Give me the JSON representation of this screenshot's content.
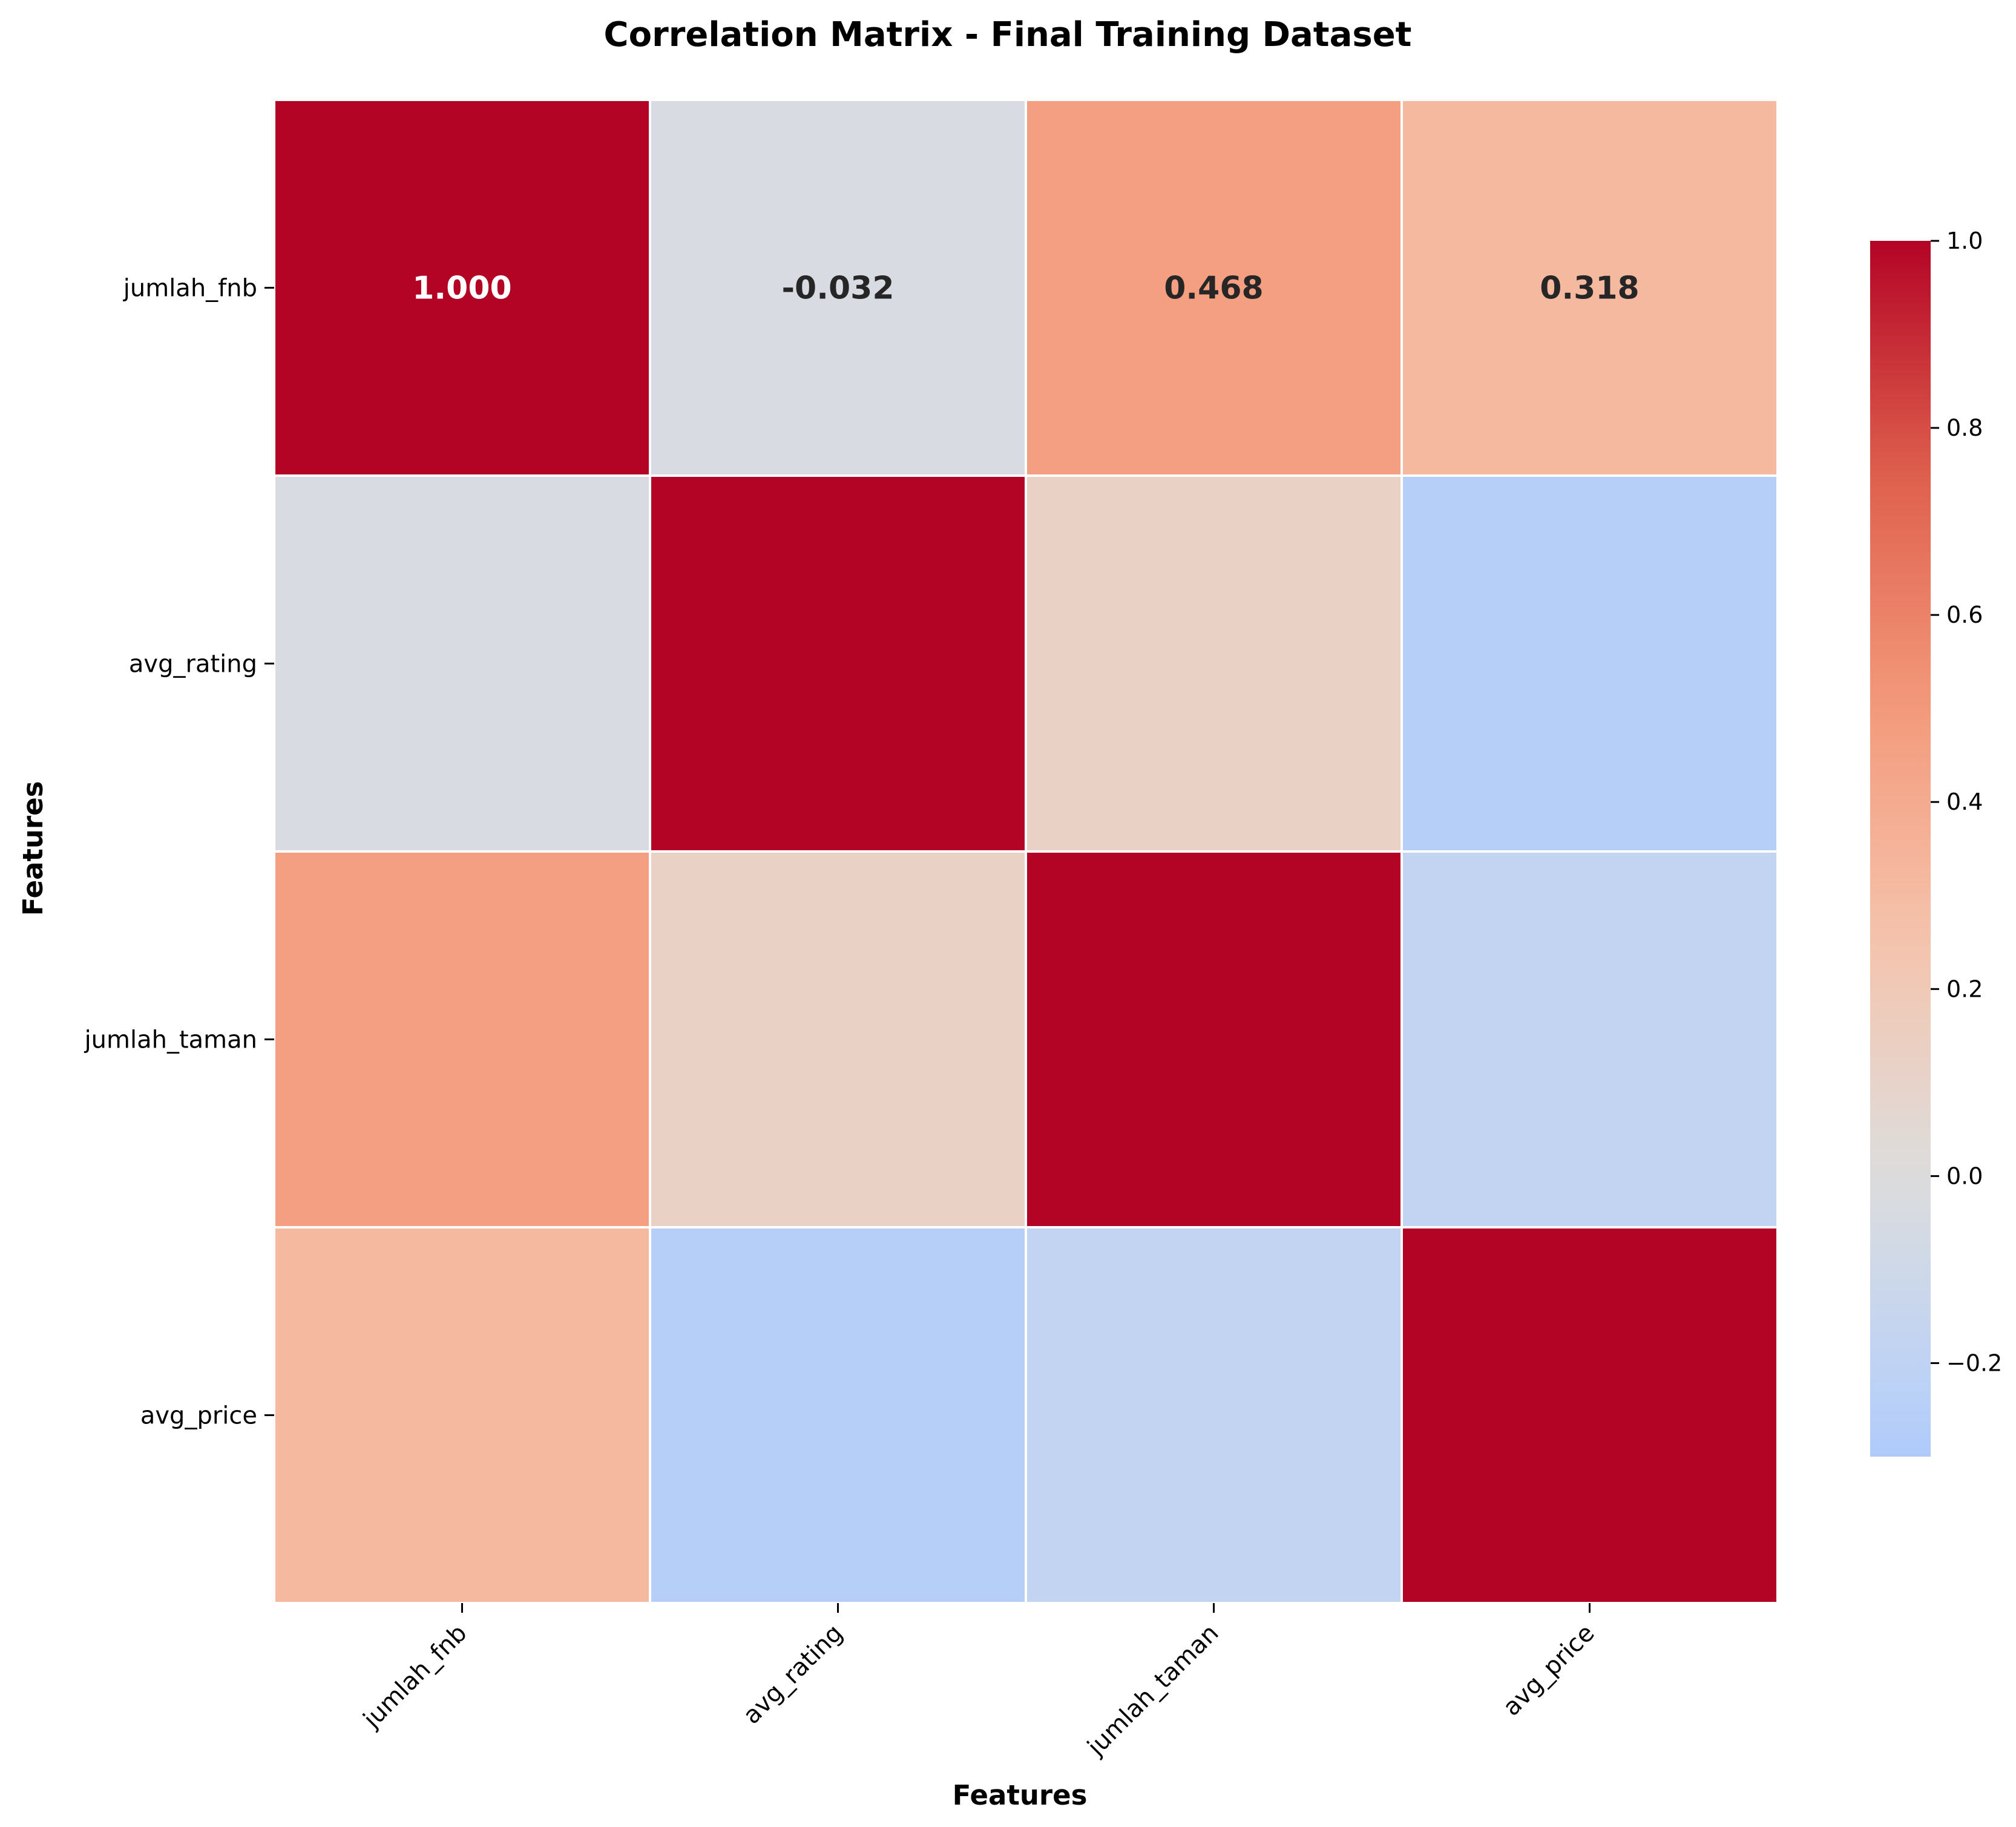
{
  "chart_data": {
    "type": "heatmap",
    "title": "Correlation Matrix - Final Training Dataset",
    "xlabel": "Features",
    "ylabel": "Features",
    "features": [
      "jumlah_fnb",
      "avg_rating",
      "jumlah_taman",
      "avg_price"
    ],
    "matrix": [
      [
        1.0,
        -0.032,
        0.468,
        0.318
      ],
      [
        -0.032,
        1.0,
        0.12,
        -0.26
      ],
      [
        0.468,
        0.12,
        1.0,
        -0.18
      ],
      [
        0.318,
        -0.26,
        -0.18,
        1.0
      ]
    ],
    "annotations": [
      {
        "row": 0,
        "col": 0,
        "text": "1.000",
        "color": "#ffffff"
      },
      {
        "row": 0,
        "col": 1,
        "text": "-0.032",
        "color": "#262626"
      },
      {
        "row": 0,
        "col": 2,
        "text": "0.468",
        "color": "#262626"
      },
      {
        "row": 0,
        "col": 3,
        "text": "0.318",
        "color": "#262626"
      }
    ],
    "colormap": "coolwarm",
    "center": 0.0,
    "vmin": -0.3,
    "vmax": 1.0,
    "colorbar_ticks": [
      1.0,
      0.8,
      0.6,
      0.4,
      0.2,
      0.0,
      -0.2
    ],
    "colorbar_tick_labels": [
      "1.0",
      "0.8",
      "0.6",
      "0.4",
      "0.2",
      "0.0",
      "−0.2"
    ]
  }
}
